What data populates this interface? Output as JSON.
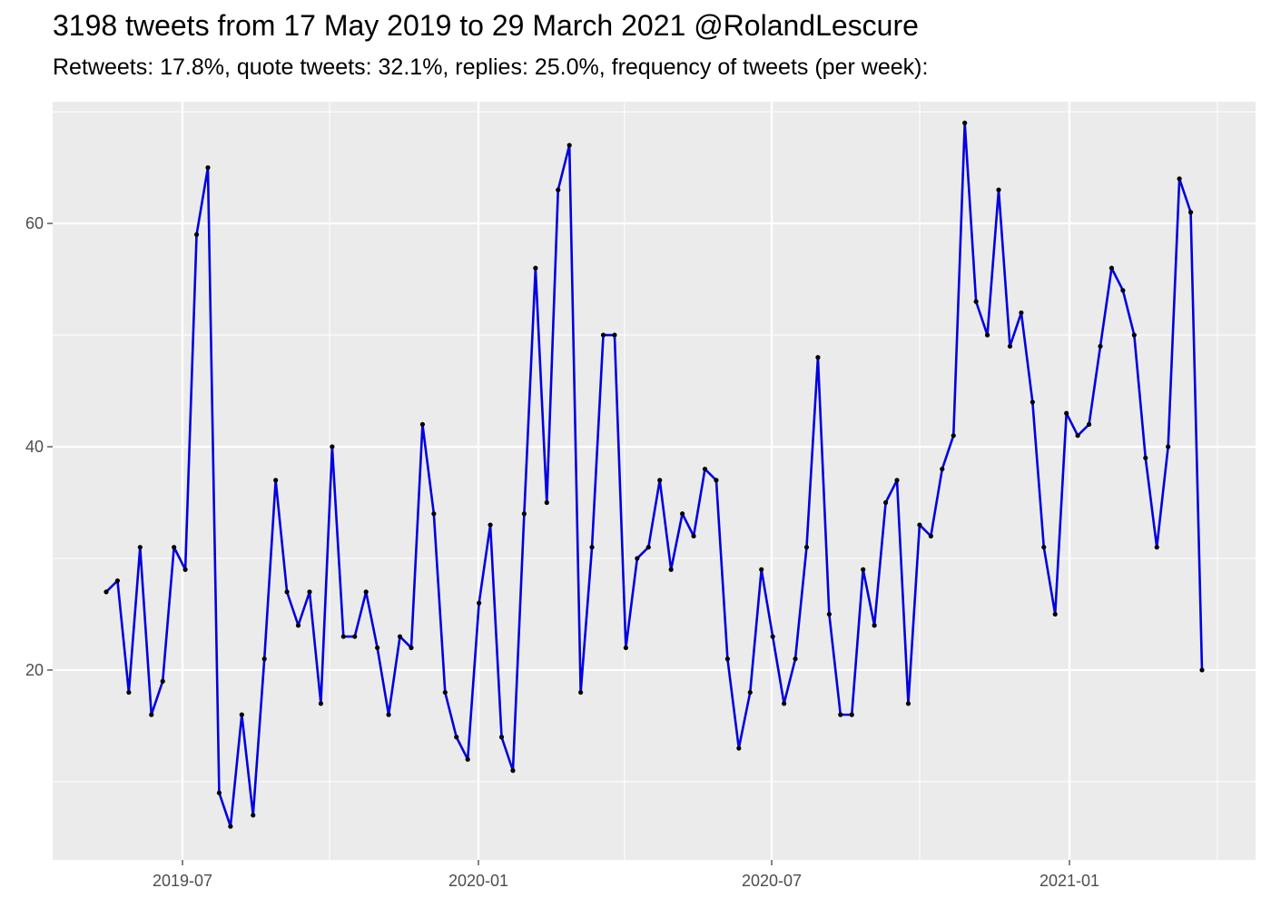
{
  "chart_data": {
    "type": "line",
    "title": "3198 tweets from 17 May 2019 to 29 March 2021 @RolandLescure",
    "subtitle": "Retweets: 17.8%, quote tweets: 32.1%, replies: 25.0%, frequency of tweets (per week):",
    "xlabel": "",
    "ylabel": "",
    "x_tick_labels": [
      "2019-07",
      "2020-01",
      "2020-07",
      "2021-01"
    ],
    "y_tick_labels": [
      "20",
      "40",
      "60"
    ],
    "y_ticks": [
      20,
      40,
      60
    ],
    "ylim": [
      3.0,
      70.9
    ],
    "grid": true,
    "line_color": "#0000e0",
    "point_color": "#000000",
    "panel_background": "#ebebeb",
    "series": [
      {
        "values": [
          27,
          28,
          18,
          31,
          16,
          19,
          31,
          29,
          59,
          65,
          9,
          6,
          16,
          7,
          21,
          37,
          27,
          24,
          27,
          17,
          40,
          23,
          23,
          27,
          22,
          16,
          23,
          22,
          42,
          34,
          18,
          14,
          12,
          26,
          33,
          14,
          11,
          34,
          56,
          35,
          63,
          67,
          18,
          31,
          50,
          50,
          22,
          30,
          31,
          37,
          29,
          34,
          32,
          38,
          37,
          21,
          13,
          18,
          29,
          23,
          17,
          21,
          31,
          48,
          25,
          16,
          16,
          29,
          24,
          35,
          37,
          17,
          33,
          32,
          38,
          41,
          69,
          53,
          50,
          63,
          49,
          52,
          44,
          31,
          25,
          43,
          41,
          42,
          49,
          56,
          54,
          50,
          39,
          31,
          40,
          64,
          61,
          20
        ]
      }
    ]
  }
}
